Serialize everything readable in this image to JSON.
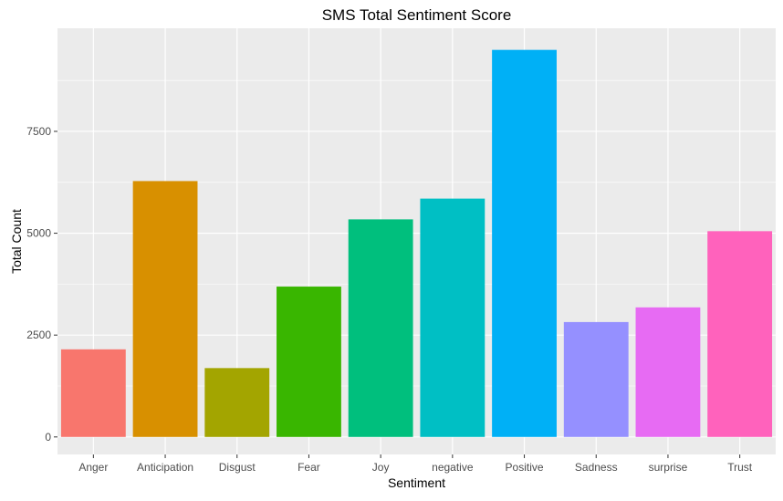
{
  "chart_data": {
    "type": "bar",
    "title": "SMS Total Sentiment Score",
    "xlabel": "Sentiment",
    "ylabel": "Total Count",
    "categories": [
      "Anger",
      "Anticipation",
      "Disgust",
      "Fear",
      "Joy",
      "negative",
      "Positive",
      "Sadness",
      "surprise",
      "Trust"
    ],
    "values": [
      2150,
      6280,
      1690,
      3690,
      5340,
      5850,
      9500,
      2820,
      3180,
      5050
    ],
    "colors": [
      "#F8766D",
      "#D89000",
      "#A3A500",
      "#39B600",
      "#00BF7D",
      "#00BFC4",
      "#00B0F6",
      "#9590FF",
      "#E76BF3",
      "#FF62BC"
    ],
    "yticks": [
      0,
      2500,
      5000,
      7500
    ],
    "ytick_labels": [
      "0",
      "2500",
      "5000",
      "7500"
    ],
    "ylim": [
      -430,
      10030
    ],
    "grid": true,
    "legend": "none",
    "panel_color": "#EBEBEB",
    "grid_color": "#FFFFFF"
  }
}
